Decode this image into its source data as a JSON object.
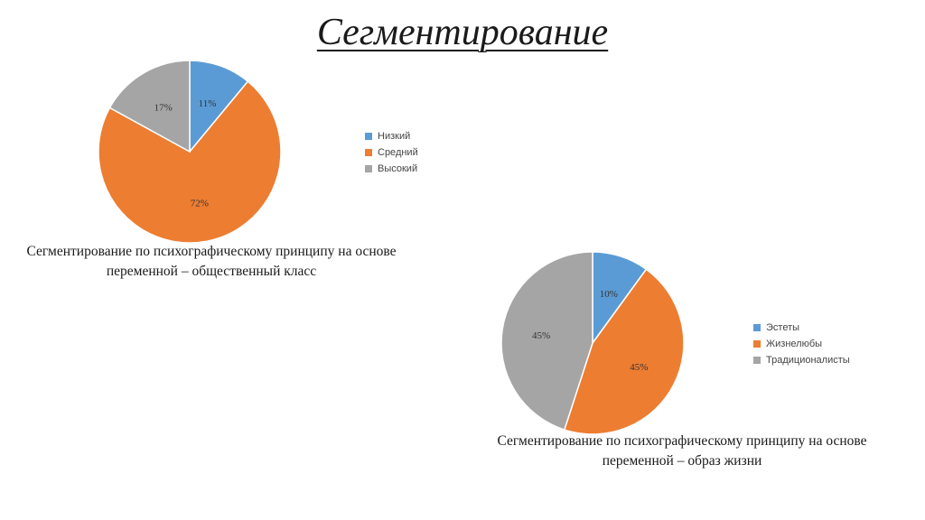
{
  "title": "Сегментирование",
  "chart_data": [
    {
      "type": "pie",
      "categories": [
        "Низкий",
        "Средний",
        "Высокий"
      ],
      "values": [
        11,
        72,
        17
      ],
      "labels": [
        "11%",
        "72%",
        "17%"
      ],
      "colors": [
        "#5b9bd5",
        "#ed7d31",
        "#a5a5a5"
      ],
      "legend_position": "right",
      "caption": "Сегментирование по психографическому принципу на основе переменной – общественный класс"
    },
    {
      "type": "pie",
      "categories": [
        "Эстеты",
        "Жизнелюбы",
        "Традиционалисты"
      ],
      "values": [
        10,
        45,
        45
      ],
      "labels": [
        "10%",
        "45%",
        "45%"
      ],
      "colors": [
        "#5b9bd5",
        "#ed7d31",
        "#a5a5a5"
      ],
      "legend_position": "right",
      "caption": "Сегментирование по психографическому принципу на основе переменной – образ жизни"
    }
  ]
}
